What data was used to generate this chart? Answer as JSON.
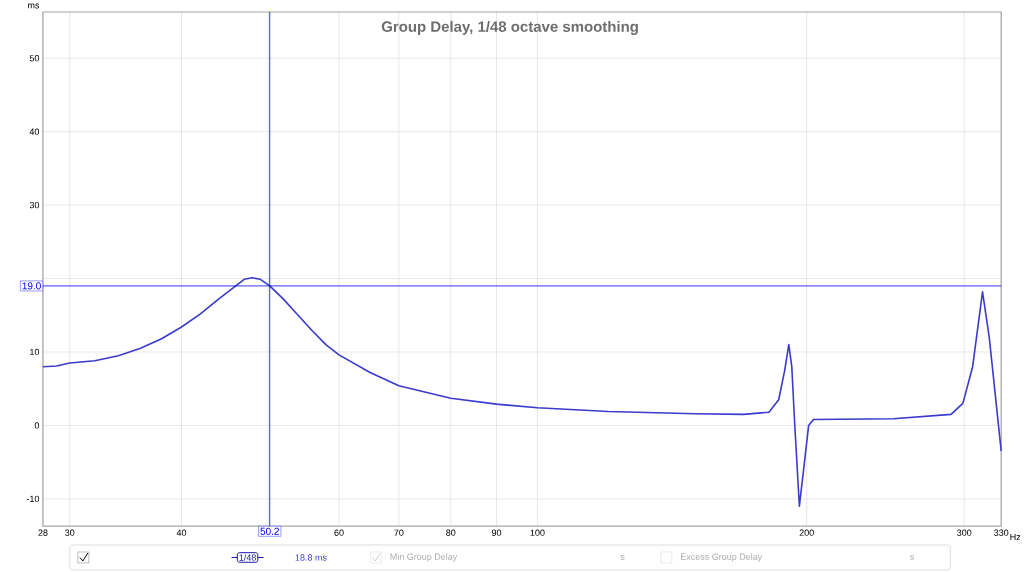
{
  "chart_data": {
    "type": "line",
    "title": "Group Delay, 1/48 octave smoothing",
    "xlabel": "Hz",
    "ylabel": "ms",
    "log": "x",
    "grid": true,
    "marker": "none",
    "line_style": "solid",
    "xlim": [
      28,
      330
    ],
    "ylim": [
      -13.7,
      56.3
    ],
    "xticks": [
      28,
      30,
      40,
      {
        "value": 50,
        "label": null
      },
      60,
      70,
      80,
      90,
      100,
      200,
      300,
      330
    ],
    "yticks": [
      -10,
      0,
      10,
      {
        "value": 20,
        "label": null
      },
      30,
      40,
      50
    ],
    "x": [
      28,
      29,
      30,
      32,
      34,
      36,
      38,
      40,
      42,
      44,
      46,
      47,
      48,
      49,
      50.2,
      52,
      54,
      56,
      58,
      60,
      65,
      70,
      80,
      90,
      100,
      120,
      150,
      170,
      181.5,
      186.1,
      189,
      191,
      192.5,
      194,
      196.3,
      198.9,
      201,
      203.5,
      250,
      290,
      299,
      306.6,
      314.5,
      320,
      330
    ],
    "series": [
      {
        "color": "#3a3acc",
        "values": [
          8.0,
          8.1,
          8.5,
          8.8,
          9.5,
          10.5,
          11.8,
          13.4,
          15.2,
          17.2,
          19.0,
          19.9,
          20.1,
          19.9,
          19.0,
          17.2,
          15.0,
          12.9,
          11.0,
          9.6,
          7.2,
          5.4,
          3.7,
          2.9,
          2.4,
          1.9,
          1.6,
          1.5,
          1.8,
          3.5,
          7.5,
          11.0,
          8.0,
          0.0,
          -11.0,
          -5.0,
          0.0,
          0.8,
          0.9,
          1.5,
          3.0,
          8.0,
          18.2,
          12.0,
          -3.5
        ]
      }
    ],
    "ref_lines": [
      {
        "axis": "x",
        "value": 50.2,
        "label": "50.2",
        "color": "#0000ff"
      },
      {
        "axis": "y",
        "value": 19.0,
        "label": "19.0",
        "color": "#0000ff"
      }
    ],
    "annotations": [
      "1/48",
      "18.8 ms",
      "Min Group Delay",
      "s",
      "Excess Group Delay",
      "s"
    ]
  }
}
